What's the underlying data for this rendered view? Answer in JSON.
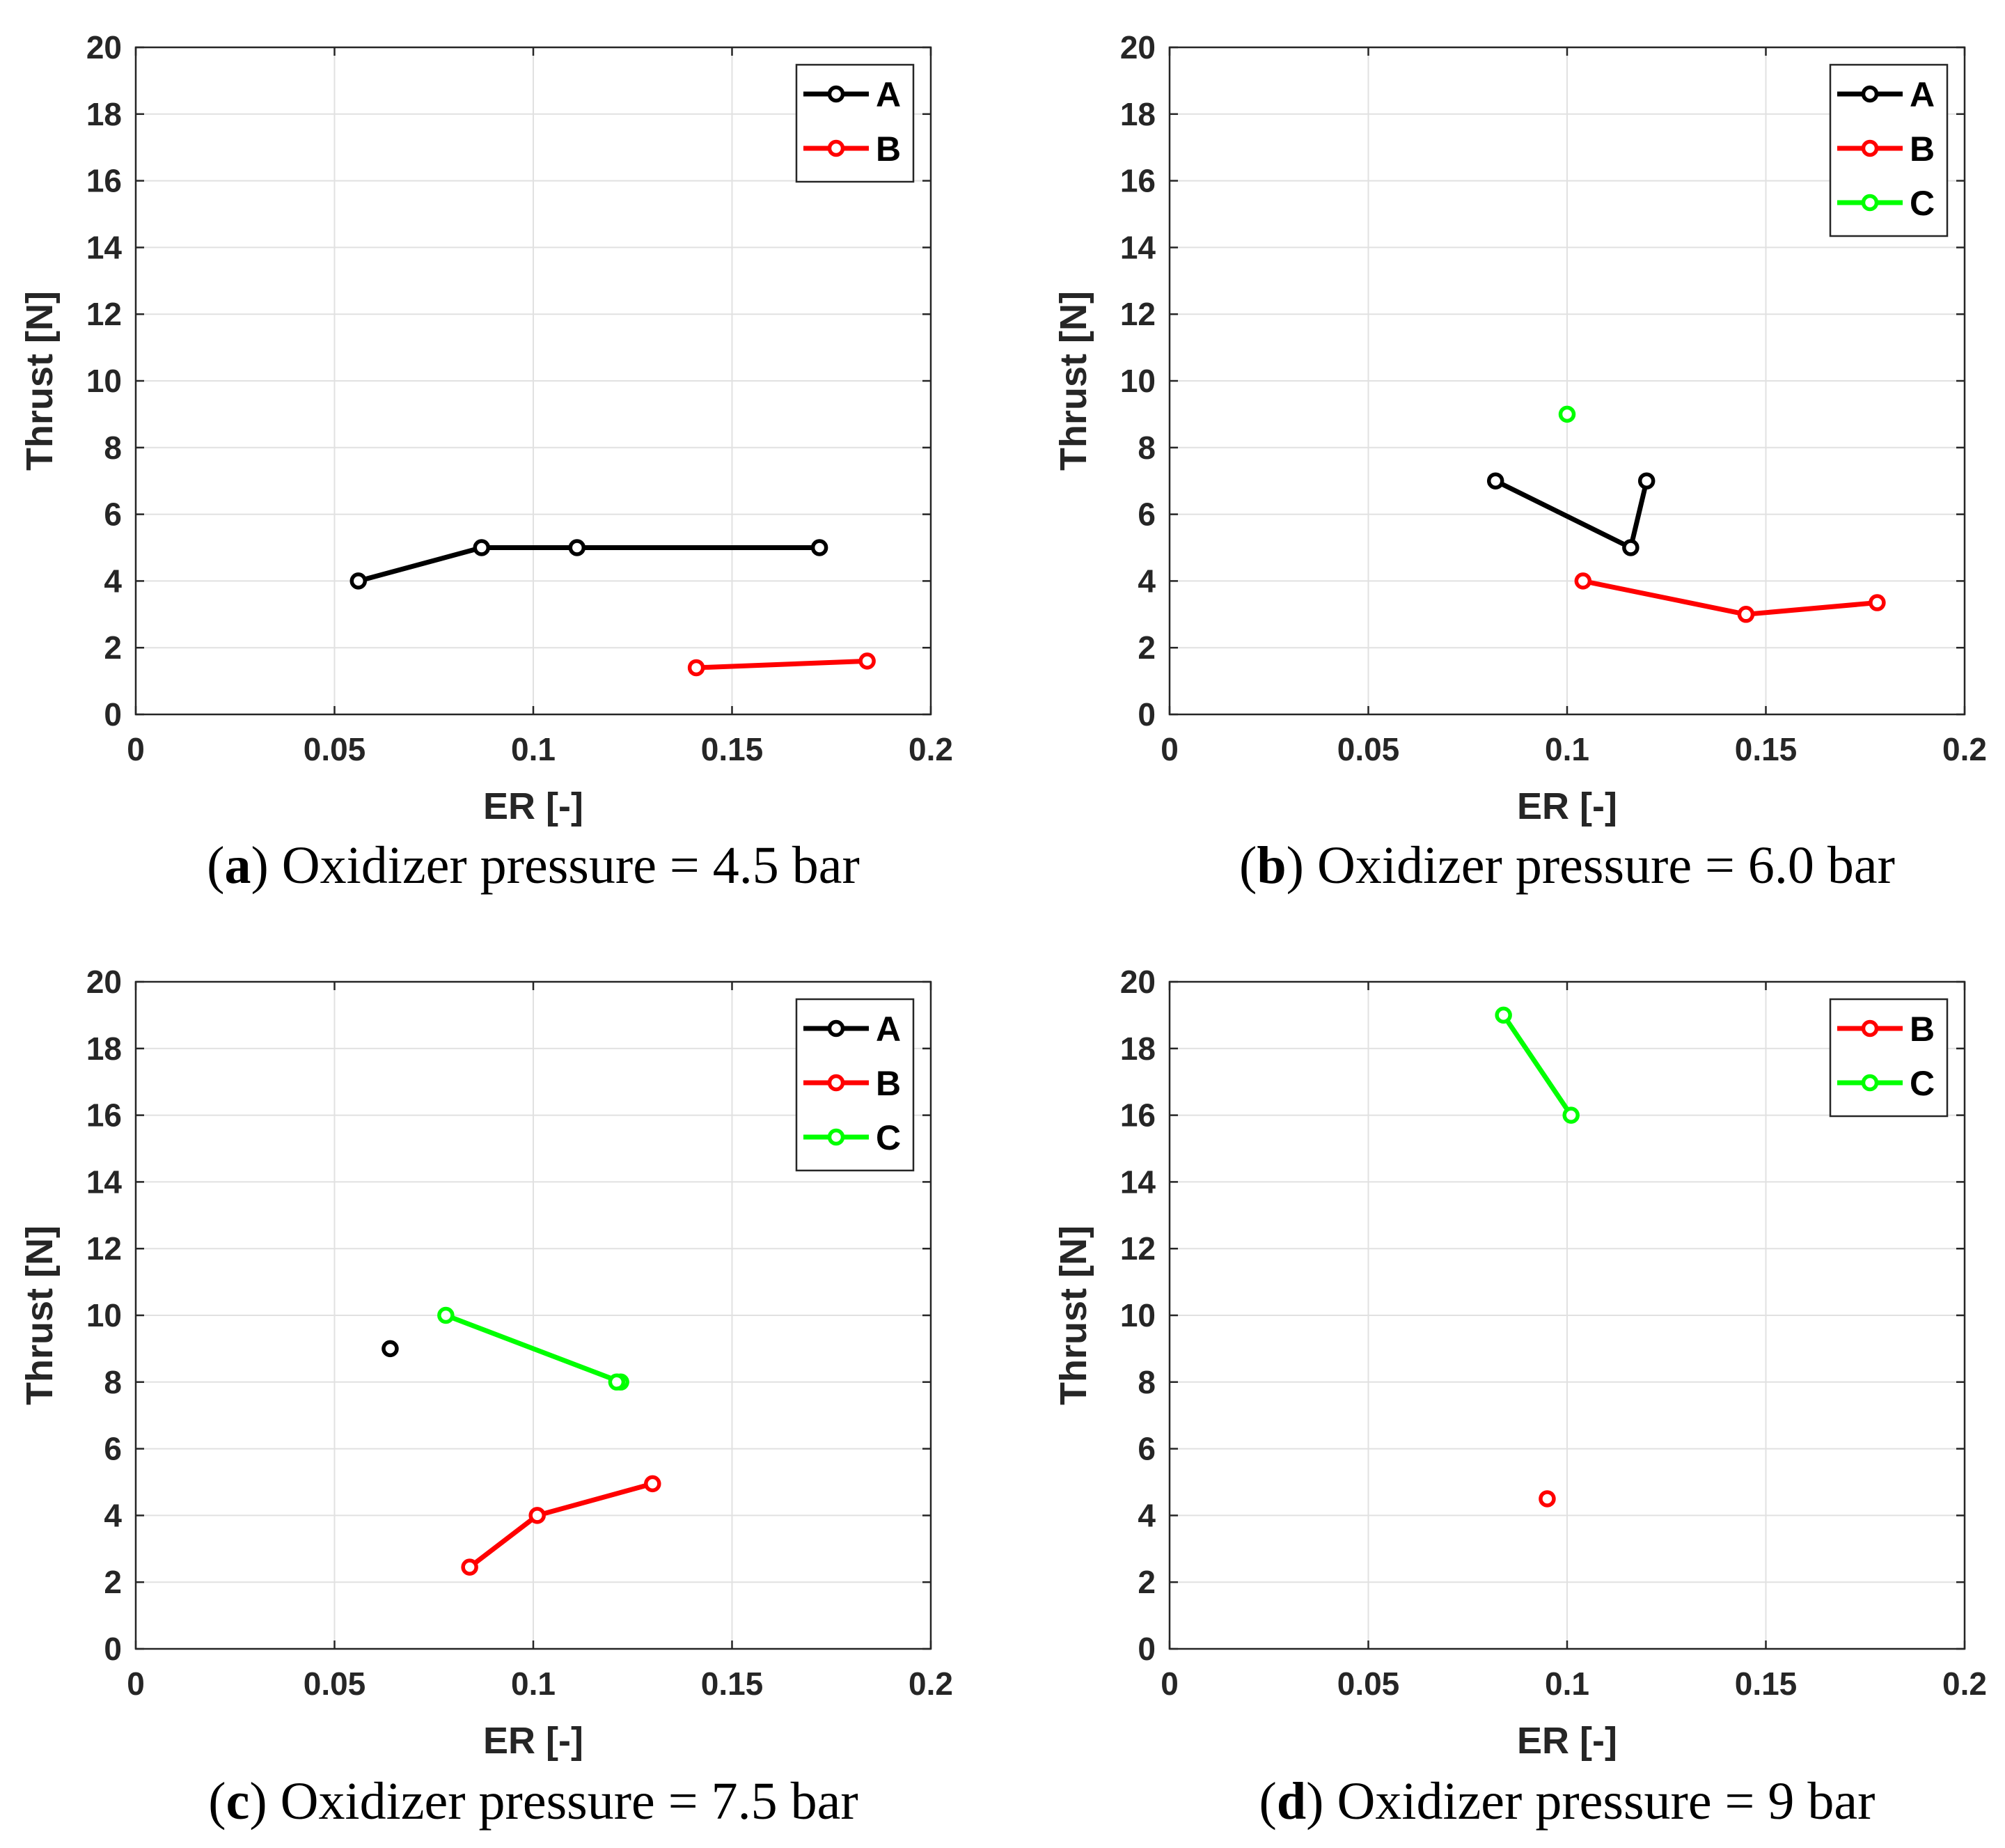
{
  "chart_data": [
    {
      "type": "line",
      "caption_letter": "a",
      "caption_text": "Oxidizer pressure = 4.5 bar",
      "xlabel": "ER [-]",
      "ylabel": "Thrust [N]",
      "xlim": [
        0,
        0.2
      ],
      "ylim": [
        0,
        20
      ],
      "xticks": [
        0,
        0.05,
        0.1,
        0.15,
        0.2
      ],
      "xtick_labels": [
        "0",
        "0.05",
        "0.1",
        "0.15",
        "0.2"
      ],
      "yticks": [
        0,
        2,
        4,
        6,
        8,
        10,
        12,
        14,
        16,
        18,
        20
      ],
      "ytick_labels": [
        "0",
        "2",
        "4",
        "6",
        "8",
        "10",
        "12",
        "14",
        "16",
        "18",
        "20"
      ],
      "grid": true,
      "legend_position": "top-right",
      "series": [
        {
          "name": "A",
          "color": "#000000",
          "x": [
            0.056,
            0.087,
            0.111,
            0.172
          ],
          "y": [
            4.0,
            5.0,
            5.0,
            5.0
          ]
        },
        {
          "name": "B",
          "color": "#ff0000",
          "x": [
            0.141,
            0.184
          ],
          "y": [
            1.4,
            1.6
          ]
        }
      ]
    },
    {
      "type": "line",
      "caption_letter": "b",
      "caption_text": "Oxidizer pressure = 6.0 bar",
      "xlabel": "ER [-]",
      "ylabel": "Thrust [N]",
      "xlim": [
        0,
        0.2
      ],
      "ylim": [
        0,
        20
      ],
      "xticks": [
        0,
        0.05,
        0.1,
        0.15,
        0.2
      ],
      "xtick_labels": [
        "0",
        "0.05",
        "0.1",
        "0.15",
        "0.2"
      ],
      "yticks": [
        0,
        2,
        4,
        6,
        8,
        10,
        12,
        14,
        16,
        18,
        20
      ],
      "ytick_labels": [
        "0",
        "2",
        "4",
        "6",
        "8",
        "10",
        "12",
        "14",
        "16",
        "18",
        "20"
      ],
      "grid": true,
      "legend_position": "top-right",
      "series": [
        {
          "name": "A",
          "color": "#000000",
          "x": [
            0.082,
            0.116,
            0.12
          ],
          "y": [
            7.0,
            5.0,
            7.0
          ]
        },
        {
          "name": "B",
          "color": "#ff0000",
          "x": [
            0.104,
            0.145,
            0.178
          ],
          "y": [
            4.0,
            3.0,
            3.35
          ]
        },
        {
          "name": "C",
          "color": "#00ff00",
          "x": [
            0.1
          ],
          "y": [
            9.0
          ]
        }
      ]
    },
    {
      "type": "line",
      "caption_letter": "c",
      "caption_text": "Oxidizer pressure = 7.5 bar",
      "xlabel": "ER [-]",
      "ylabel": "Thrust [N]",
      "xlim": [
        0,
        0.2
      ],
      "ylim": [
        0,
        20
      ],
      "xticks": [
        0,
        0.05,
        0.1,
        0.15,
        0.2
      ],
      "xtick_labels": [
        "0",
        "0.05",
        "0.1",
        "0.15",
        "0.2"
      ],
      "yticks": [
        0,
        2,
        4,
        6,
        8,
        10,
        12,
        14,
        16,
        18,
        20
      ],
      "ytick_labels": [
        "0",
        "2",
        "4",
        "6",
        "8",
        "10",
        "12",
        "14",
        "16",
        "18",
        "20"
      ],
      "grid": true,
      "legend_position": "top-right",
      "series": [
        {
          "name": "A",
          "color": "#000000",
          "x": [
            0.064
          ],
          "y": [
            9.0
          ]
        },
        {
          "name": "B",
          "color": "#ff0000",
          "x": [
            0.084,
            0.101,
            0.13
          ],
          "y": [
            2.45,
            4.0,
            4.95
          ]
        },
        {
          "name": "C",
          "color": "#00ff00",
          "x": [
            0.078,
            0.122,
            0.121
          ],
          "y": [
            10.0,
            8.0,
            8.0
          ]
        }
      ]
    },
    {
      "type": "line",
      "caption_letter": "d",
      "caption_text": "Oxidizer pressure = 9 bar",
      "xlabel": "ER [-]",
      "ylabel": "Thrust [N]",
      "xlim": [
        0,
        0.2
      ],
      "ylim": [
        0,
        20
      ],
      "xticks": [
        0,
        0.05,
        0.1,
        0.15,
        0.2
      ],
      "xtick_labels": [
        "0",
        "0.05",
        "0.1",
        "0.15",
        "0.2"
      ],
      "yticks": [
        0,
        2,
        4,
        6,
        8,
        10,
        12,
        14,
        16,
        18,
        20
      ],
      "ytick_labels": [
        "0",
        "2",
        "4",
        "6",
        "8",
        "10",
        "12",
        "14",
        "16",
        "18",
        "20"
      ],
      "grid": true,
      "legend_position": "top-right",
      "series": [
        {
          "name": "B",
          "color": "#ff0000",
          "x": [
            0.095
          ],
          "y": [
            4.5
          ]
        },
        {
          "name": "C",
          "color": "#00ff00",
          "x": [
            0.084,
            0.101
          ],
          "y": [
            19.0,
            16.0
          ]
        }
      ]
    }
  ]
}
